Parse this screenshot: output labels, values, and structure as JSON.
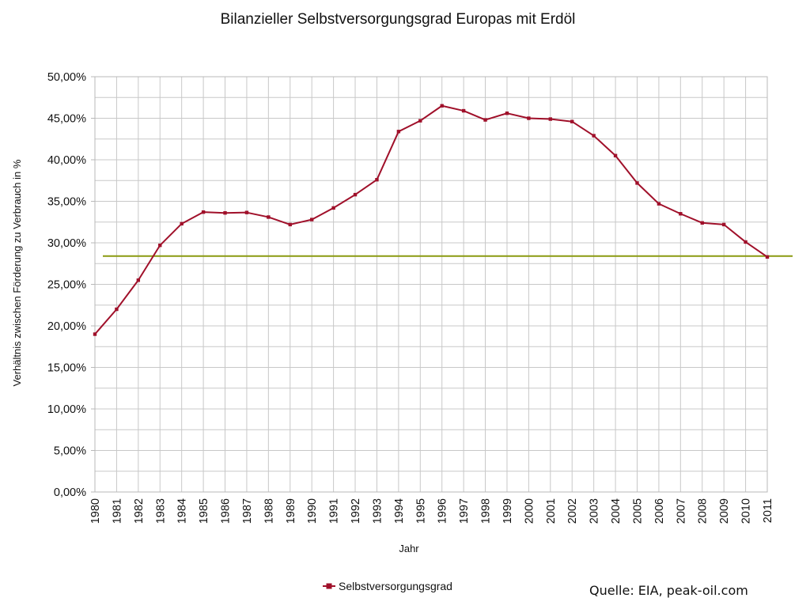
{
  "chart_data": {
    "type": "line",
    "title": "Bilanzieller Selbstversorgungsgrad Europas mit Erdöl",
    "xlabel": "Jahr",
    "ylabel": "Verhältnis zwischen Förderung zu Verbrauch in %",
    "ylim": [
      0,
      50
    ],
    "yticks": [
      "0,00%",
      "5,00%",
      "10,00%",
      "15,00%",
      "20,00%",
      "25,00%",
      "30,00%",
      "35,00%",
      "40,00%",
      "45,00%",
      "50,00%"
    ],
    "categories": [
      "1980",
      "1981",
      "1982",
      "1983",
      "1984",
      "1985",
      "1986",
      "1987",
      "1988",
      "1989",
      "1990",
      "1991",
      "1992",
      "1993",
      "1994",
      "1995",
      "1996",
      "1997",
      "1998",
      "1999",
      "2000",
      "2001",
      "2002",
      "2003",
      "2004",
      "2005",
      "2006",
      "2007",
      "2008",
      "2009",
      "2010",
      "2011"
    ],
    "grid": true,
    "legend_position": "bottom",
    "series": [
      {
        "name": "Selbstversorgungsgrad",
        "color": "#a0102a",
        "values": [
          19.0,
          22.0,
          25.5,
          29.7,
          32.3,
          33.7,
          33.6,
          33.65,
          33.1,
          32.2,
          32.8,
          34.2,
          35.8,
          37.6,
          43.4,
          44.7,
          46.5,
          45.9,
          44.8,
          45.6,
          45.0,
          44.9,
          44.6,
          42.9,
          40.5,
          37.2,
          34.7,
          33.5,
          32.4,
          32.2,
          30.1,
          28.3
        ]
      }
    ],
    "reference_line": {
      "value": 28.4,
      "color": "#8a9a10"
    },
    "source_note": "Quelle: EIA, peak-oil.com"
  }
}
